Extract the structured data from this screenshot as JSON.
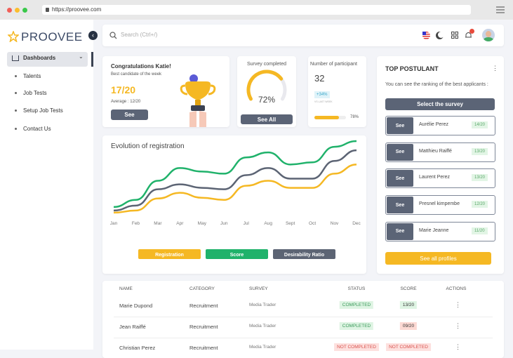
{
  "browser": {
    "url": "https://proovee.com"
  },
  "sidebar": {
    "logo": "PROOVEE",
    "items": [
      "Dashboards",
      "Talents",
      "Job Tests",
      "Setup Job Tests",
      "Contact Us"
    ]
  },
  "topbar": {
    "search": "Search (Ctrl+/)"
  },
  "congrats": {
    "title": "Congratulations Katie!",
    "subtitle": "Best candidate of the week",
    "score": "17/20",
    "average": "Average : 12/20",
    "button": "See"
  },
  "survey": {
    "title": "Survey completed",
    "value": 72,
    "value_label": "72%",
    "button": "See All"
  },
  "participants": {
    "title": "Number of participant",
    "value": 32,
    "change": "+34%",
    "note": "VS LAST WEEK",
    "progress": 78,
    "progress_label": "78%"
  },
  "top_postulant": {
    "title": "TOP POSTULANT",
    "description": "You can see the ranking of the best applicants :",
    "select_button": "Select the survey",
    "item_button": "See",
    "items": [
      {
        "name": "Aurélie Perez",
        "score": "14/20"
      },
      {
        "name": "Matthieu Raiffé",
        "score": "13/20"
      },
      {
        "name": "Laurent Perez",
        "score": "13/20"
      },
      {
        "name": "Presnel kimpembe",
        "score": "12/20"
      },
      {
        "name": "Marie Jeanne",
        "score": "11/20"
      }
    ],
    "footer_button": "See all profiles"
  },
  "chart_data": {
    "type": "line",
    "title": "Evolution of registration",
    "categories": [
      "Jan",
      "Feb",
      "Mar",
      "Apr",
      "May",
      "Jun",
      "Jul",
      "Aug",
      "Sept",
      "Oct",
      "Nov",
      "Dec"
    ],
    "ylim": [
      0,
      110
    ],
    "series": [
      {
        "name": "Registration",
        "color": "#f5b823",
        "values": [
          7,
          10,
          27,
          35,
          28,
          25,
          45,
          52,
          42,
          42,
          62,
          75
        ]
      },
      {
        "name": "Score",
        "color": "#20b26b",
        "values": [
          15,
          25,
          52,
          70,
          65,
          62,
          85,
          92,
          75,
          78,
          100,
          108
        ]
      },
      {
        "name": "Desirability Ratio",
        "color": "#5c6474",
        "values": [
          10,
          17,
          40,
          47,
          42,
          40,
          60,
          70,
          55,
          55,
          80,
          95
        ]
      }
    ]
  },
  "table": {
    "headers": [
      "NAME",
      "CATEGORY",
      "SURVEY",
      "STATUS",
      "SCORE",
      "ACTIONS"
    ],
    "rows": [
      [
        "Marie Dupond",
        "Recruitment",
        "Media Trader",
        "COMPLETED",
        "13/20"
      ],
      [
        "Jean Raiffé",
        "Recruitment",
        "Media Trader",
        "COMPLETED",
        "09/20"
      ],
      [
        "Christian Perez",
        "Recruitment",
        "Media Trader",
        "NOT COMPLETED",
        "NOT COMPLETED"
      ]
    ]
  }
}
